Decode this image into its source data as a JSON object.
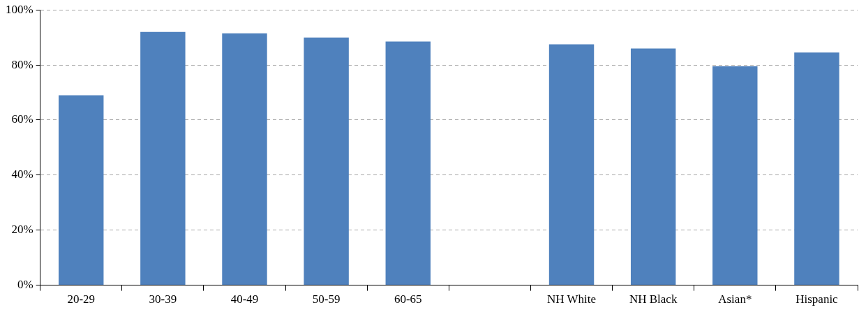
{
  "chart_data": {
    "type": "bar",
    "categories": [
      "20-29",
      "30-39",
      "40-49",
      "50-59",
      "60-65",
      null,
      "NH White",
      "NH Black",
      "Asian*",
      "Hispanic"
    ],
    "values": [
      69,
      92,
      91.5,
      90,
      88.5,
      null,
      87.5,
      86,
      79.5,
      84.5
    ],
    "color": "#4f81bd",
    "ylim": [
      0,
      100
    ],
    "yticks": [
      {
        "value": 0,
        "label": "0%"
      },
      {
        "value": 20,
        "label": "20%"
      },
      {
        "value": 40,
        "label": "40%"
      },
      {
        "value": 60,
        "label": "60%"
      },
      {
        "value": 80,
        "label": "80%"
      },
      {
        "value": 100,
        "label": "100%"
      }
    ],
    "grid": "y",
    "legend": false
  }
}
